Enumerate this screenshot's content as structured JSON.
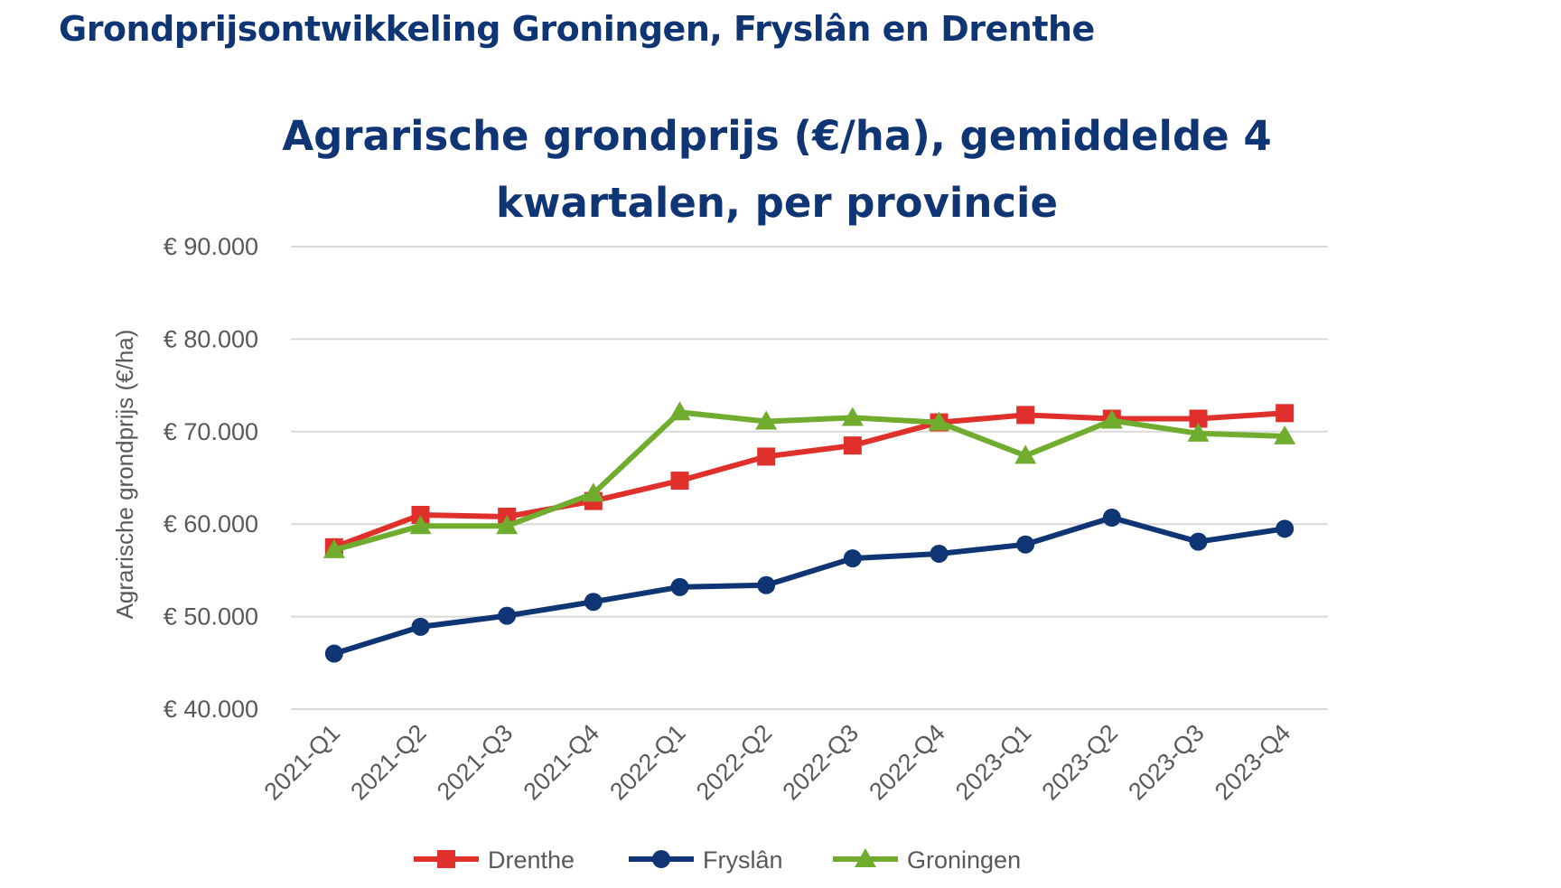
{
  "page": {
    "heading": "Grondprijsontwikkeling Groningen, Fryslân en Drenthe"
  },
  "chart_data": {
    "type": "line",
    "title_lines": [
      "Agrarische grondprijs (€/ha), gemiddelde 4",
      "kwartalen, per provincie"
    ],
    "xlabel": "",
    "ylabel": "Agrarische grondprijs (€/ha)",
    "categories": [
      "2021-Q1",
      "2021-Q2",
      "2021-Q3",
      "2021-Q4",
      "2022-Q1",
      "2022-Q2",
      "2022-Q3",
      "2022-Q4",
      "2023-Q1",
      "2023-Q2",
      "2023-Q3",
      "2023-Q4"
    ],
    "ylim": [
      40000,
      90000
    ],
    "yticks": [
      40000,
      50000,
      60000,
      70000,
      80000,
      90000
    ],
    "ytick_labels": [
      "€ 40.000",
      "€ 50.000",
      "€ 60.000",
      "€ 70.000",
      "€ 80.000",
      "€ 90.000"
    ],
    "grid": true,
    "legend_position": "bottom",
    "series": [
      {
        "name": "Drenthe",
        "color": "#e0302b",
        "marker": "square",
        "values": [
          57500,
          61000,
          60800,
          62500,
          64700,
          67300,
          68500,
          71000,
          71800,
          71400,
          71400,
          72000
        ]
      },
      {
        "name": "Fryslân",
        "color": "#0f3575",
        "marker": "circle",
        "values": [
          46000,
          48900,
          50100,
          51600,
          53200,
          53400,
          56300,
          56800,
          57800,
          60700,
          58100,
          59500
        ]
      },
      {
        "name": "Groningen",
        "color": "#70ad2f",
        "marker": "triangle",
        "values": [
          57200,
          59800,
          59800,
          63300,
          72100,
          71100,
          71500,
          71000,
          67400,
          71200,
          69800,
          69500
        ]
      }
    ]
  }
}
